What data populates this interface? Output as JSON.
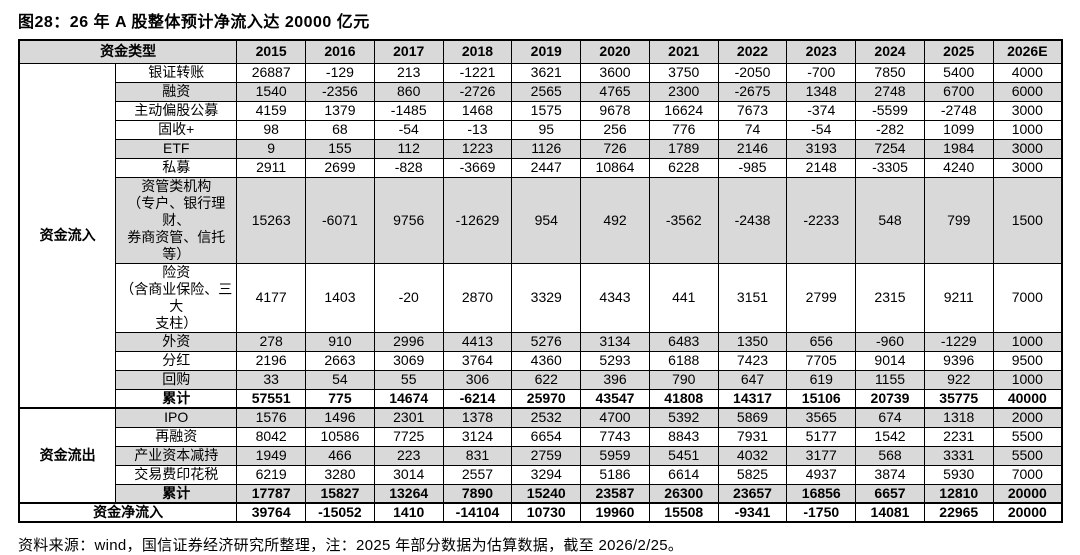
{
  "title": "图28：26 年 A 股整体预计净流入达 20000 亿元",
  "footer": "资料来源：wind，国信证券经济研究所整理，注：2025 年部分数据为估算数据，截至 2026/2/25。",
  "colors": {
    "row_shade": "#d9d9d9",
    "border": "#000000",
    "text": "#000000",
    "background": "#ffffff"
  },
  "table": {
    "corner_label": "资金类型",
    "years": [
      "2015",
      "2016",
      "2017",
      "2018",
      "2019",
      "2020",
      "2021",
      "2022",
      "2023",
      "2024",
      "2025",
      "2026E"
    ],
    "groups": [
      {
        "label": "资金流入",
        "rows": [
          {
            "label": "银证转账",
            "shaded": false,
            "bold": false,
            "values": [
              26887,
              -129,
              213,
              -1221,
              3621,
              3600,
              3750,
              -2050,
              -700,
              7850,
              5400,
              4000
            ]
          },
          {
            "label": "融资",
            "shaded": true,
            "bold": false,
            "values": [
              1540,
              -2356,
              860,
              -2726,
              2565,
              4765,
              2300,
              -2675,
              1348,
              2748,
              6700,
              6000
            ]
          },
          {
            "label": "主动偏股公募",
            "shaded": false,
            "bold": false,
            "values": [
              4159,
              1379,
              -1485,
              1468,
              1575,
              9678,
              16624,
              7673,
              -374,
              -5599,
              -2748,
              3000
            ]
          },
          {
            "label": "固收+",
            "shaded": false,
            "bold": false,
            "values": [
              98,
              68,
              -54,
              -13,
              95,
              256,
              776,
              74,
              -54,
              -282,
              1099,
              1000
            ]
          },
          {
            "label": "ETF",
            "shaded": true,
            "bold": false,
            "values": [
              9,
              155,
              112,
              1223,
              1126,
              726,
              1789,
              2146,
              3193,
              7254,
              1984,
              3000
            ]
          },
          {
            "label": "私募",
            "shaded": false,
            "bold": false,
            "values": [
              2911,
              2699,
              -828,
              -3669,
              2447,
              10864,
              6228,
              -985,
              2148,
              -3305,
              4240,
              3000
            ]
          },
          {
            "label": "资管类机构\n（专户、银行理财、\n券商资管、信托等）",
            "shaded": true,
            "bold": false,
            "values": [
              15263,
              -6071,
              9756,
              -12629,
              954,
              492,
              -3562,
              -2438,
              -2233,
              548,
              799,
              1500
            ]
          },
          {
            "label": "险资\n（含商业保险、三大\n支柱）",
            "shaded": false,
            "bold": false,
            "values": [
              4177,
              1403,
              -20,
              2870,
              3329,
              4343,
              441,
              3151,
              2799,
              2315,
              9211,
              7000
            ]
          },
          {
            "label": "外资",
            "shaded": true,
            "bold": false,
            "values": [
              278,
              910,
              2996,
              4413,
              5276,
              3134,
              6483,
              1350,
              656,
              -960,
              -1229,
              1000
            ]
          },
          {
            "label": "分红",
            "shaded": false,
            "bold": false,
            "values": [
              2196,
              2663,
              3069,
              3764,
              4360,
              5293,
              6188,
              7423,
              7705,
              9014,
              9396,
              9500
            ]
          },
          {
            "label": "回购",
            "shaded": true,
            "bold": false,
            "values": [
              33,
              54,
              55,
              306,
              622,
              396,
              790,
              647,
              619,
              1155,
              922,
              1000
            ]
          },
          {
            "label": "累计",
            "shaded": false,
            "bold": true,
            "values": [
              57551,
              775,
              14674,
              -6214,
              25970,
              43547,
              41808,
              14317,
              15106,
              20739,
              35775,
              40000
            ]
          }
        ]
      },
      {
        "label": "资金流出",
        "rows": [
          {
            "label": "IPO",
            "shaded": true,
            "bold": false,
            "values": [
              1576,
              1496,
              2301,
              1378,
              2532,
              4700,
              5392,
              5869,
              3565,
              674,
              1318,
              2000
            ]
          },
          {
            "label": "再融资",
            "shaded": false,
            "bold": false,
            "values": [
              8042,
              10586,
              7725,
              3124,
              6654,
              7743,
              8843,
              7931,
              5177,
              1542,
              2231,
              5500
            ]
          },
          {
            "label": "产业资本减持",
            "shaded": true,
            "bold": false,
            "values": [
              1949,
              466,
              223,
              831,
              2759,
              5959,
              5451,
              4032,
              3177,
              568,
              3331,
              5500
            ]
          },
          {
            "label": "交易费印花税",
            "shaded": false,
            "bold": false,
            "values": [
              6219,
              3280,
              3014,
              2557,
              3294,
              5186,
              6614,
              5825,
              4937,
              3874,
              5930,
              7000
            ]
          },
          {
            "label": "累计",
            "shaded": true,
            "bold": true,
            "values": [
              17787,
              15827,
              13264,
              7890,
              15240,
              23587,
              26300,
              23657,
              16856,
              6657,
              12810,
              20000
            ]
          }
        ]
      }
    ],
    "net_row": {
      "label": "资金净流入",
      "shaded": false,
      "bold": true,
      "values": [
        39764,
        -15052,
        1410,
        -14104,
        10730,
        19960,
        15508,
        -9341,
        -1750,
        14081,
        22965,
        20000
      ]
    }
  }
}
